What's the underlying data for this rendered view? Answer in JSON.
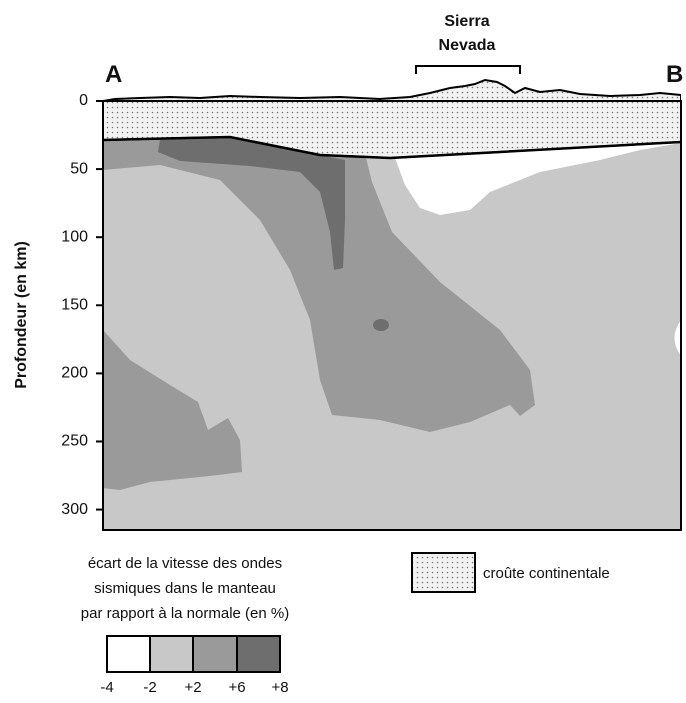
{
  "labels": {
    "left": "A",
    "right": "B",
    "range": [
      "Sierra",
      "Nevada"
    ]
  },
  "axis": {
    "label": "Profondeur (en km)",
    "ylim": [
      0,
      315
    ],
    "yticks": [
      0,
      50,
      100,
      150,
      200,
      250,
      300
    ]
  },
  "legend": {
    "title": [
      "écart de la vitesse des ondes",
      "sismiques dans le manteau",
      "par rapport à la normale (en %)"
    ],
    "scale": [
      "-4",
      "-2",
      "+2",
      "+6",
      "+8"
    ],
    "crust": "croûte continentale"
  }
}
